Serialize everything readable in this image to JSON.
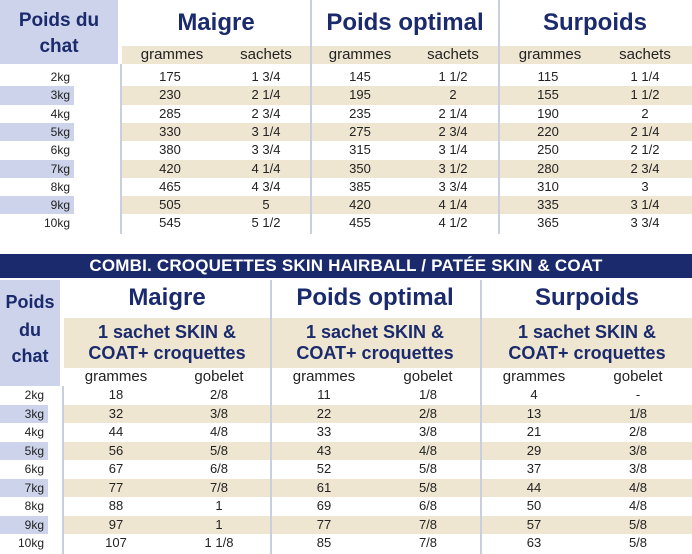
{
  "table1": {
    "row_header": [
      "Poids du",
      "chat"
    ],
    "groups": [
      "Maigre",
      "Poids optimal",
      "Surpoids"
    ],
    "subheaders": [
      "grammes",
      "sachets",
      "grammes",
      "sachets",
      "grammes",
      "sachets"
    ],
    "rows": [
      {
        "weight": "2kg",
        "cells": [
          "175",
          "1 3/4",
          "145",
          "1 1/2",
          "115",
          "1 1/4"
        ]
      },
      {
        "weight": "3kg",
        "cells": [
          "230",
          "2 1/4",
          "195",
          "2",
          "155",
          "1 1/2"
        ]
      },
      {
        "weight": "4kg",
        "cells": [
          "285",
          "2 3/4",
          "235",
          "2 1/4",
          "190",
          "2"
        ]
      },
      {
        "weight": "5kg",
        "cells": [
          "330",
          "3 1/4",
          "275",
          "2 3/4",
          "220",
          "2 1/4"
        ]
      },
      {
        "weight": "6kg",
        "cells": [
          "380",
          "3 3/4",
          "315",
          "3 1/4",
          "250",
          "2 1/2"
        ]
      },
      {
        "weight": "7kg",
        "cells": [
          "420",
          "4 1/4",
          "350",
          "3 1/2",
          "280",
          "2 3/4"
        ]
      },
      {
        "weight": "8kg",
        "cells": [
          "465",
          "4 3/4",
          "385",
          "3 3/4",
          "310",
          "3"
        ]
      },
      {
        "weight": "9kg",
        "cells": [
          "505",
          "5",
          "420",
          "4 1/4",
          "335",
          "3 1/4"
        ]
      },
      {
        "weight": "10kg",
        "cells": [
          "545",
          "5 1/2",
          "455",
          "4 1/2",
          "365",
          "3 3/4"
        ]
      }
    ]
  },
  "banner": "COMBI. CROQUETTES SKIN HAIRBALL / PATÉE SKIN & COAT",
  "table2": {
    "row_header": [
      "Poids",
      "du",
      "chat"
    ],
    "groups": [
      "Maigre",
      "Poids optimal",
      "Surpoids"
    ],
    "combo_line1": "1 sachet SKIN &",
    "combo_line2": "COAT+ croquettes",
    "subheaders": [
      "grammes",
      "gobelet",
      "grammes",
      "gobelet",
      "grammes",
      "gobelet"
    ],
    "rows": [
      {
        "weight": "2kg",
        "cells": [
          "18",
          "2/8",
          "11",
          "1/8",
          "4",
          "-"
        ]
      },
      {
        "weight": "3kg",
        "cells": [
          "32",
          "3/8",
          "22",
          "2/8",
          "13",
          "1/8"
        ]
      },
      {
        "weight": "4kg",
        "cells": [
          "44",
          "4/8",
          "33",
          "3/8",
          "21",
          "2/8"
        ]
      },
      {
        "weight": "5kg",
        "cells": [
          "56",
          "5/8",
          "43",
          "4/8",
          "29",
          "3/8"
        ]
      },
      {
        "weight": "6kg",
        "cells": [
          "67",
          "6/8",
          "52",
          "5/8",
          "37",
          "3/8"
        ]
      },
      {
        "weight": "7kg",
        "cells": [
          "77",
          "7/8",
          "61",
          "5/8",
          "44",
          "4/8"
        ]
      },
      {
        "weight": "8kg",
        "cells": [
          "88",
          "1",
          "69",
          "6/8",
          "50",
          "4/8"
        ]
      },
      {
        "weight": "9kg",
        "cells": [
          "97",
          "1",
          "77",
          "7/8",
          "57",
          "5/8"
        ]
      },
      {
        "weight": "10kg",
        "cells": [
          "107",
          "1 1/8",
          "85",
          "7/8",
          "63",
          "5/8"
        ]
      }
    ]
  }
}
